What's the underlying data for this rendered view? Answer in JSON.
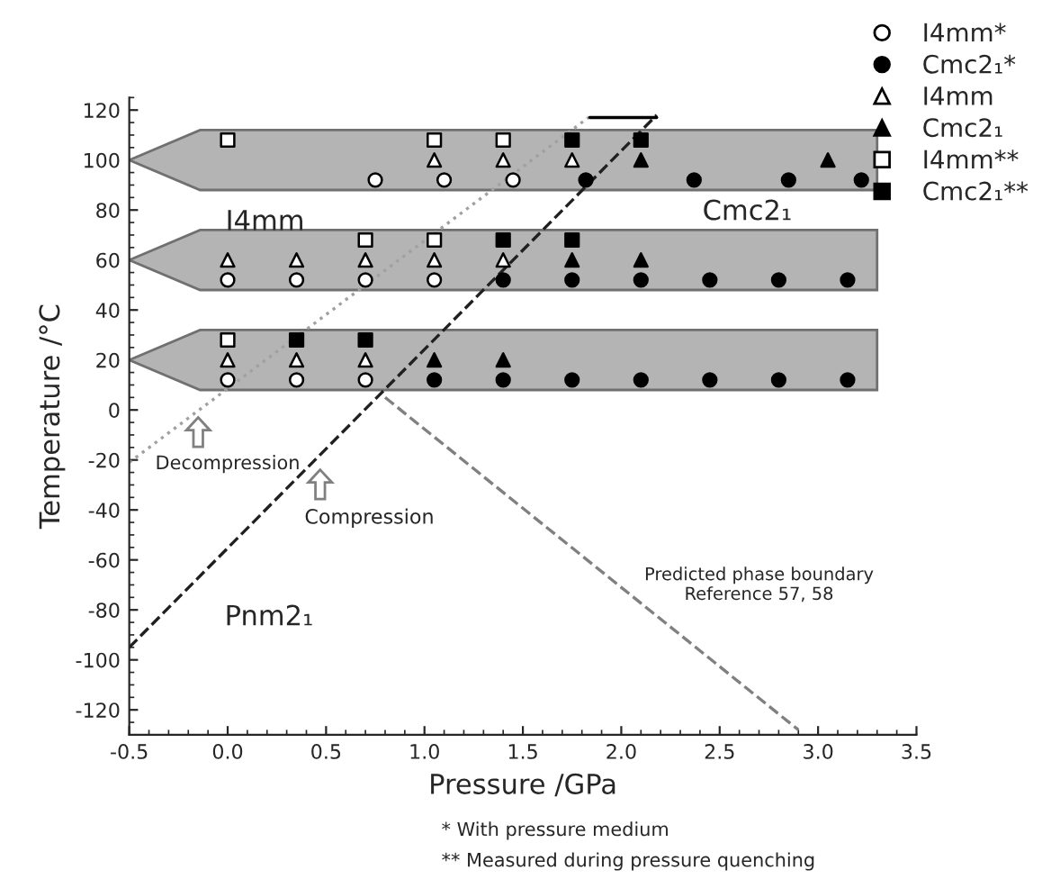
{
  "chart_data": {
    "type": "scatter",
    "xlabel": "Pressure /GPa",
    "ylabel": "Temperature /°C",
    "xlim": [
      -0.5,
      3.5
    ],
    "ylim": [
      -130,
      125
    ],
    "xticks": [
      {
        "value": -0.5,
        "label": "-0.5"
      },
      {
        "value": 0,
        "label": "0.0"
      },
      {
        "value": 0.5,
        "label": "0.5"
      },
      {
        "value": 1,
        "label": "1.0"
      },
      {
        "value": 1.5,
        "label": "1.5"
      },
      {
        "value": 2,
        "label": "2.0"
      },
      {
        "value": 2.5,
        "label": "2.5"
      },
      {
        "value": 3,
        "label": "3.0"
      },
      {
        "value": 3.5,
        "label": "3.5"
      }
    ],
    "yticks": [
      -120,
      -100,
      -80,
      -60,
      -40,
      -20,
      0,
      20,
      40,
      60,
      80,
      100,
      120
    ],
    "grid": false,
    "legend": "top right",
    "bands": [
      {
        "axis": "y",
        "from": 88,
        "to": 112,
        "label": null,
        "color": "#b4b4b4"
      },
      {
        "axis": "y",
        "from": 48,
        "to": 72,
        "label": null,
        "color": "#b4b4b4"
      },
      {
        "axis": "y",
        "from": 8,
        "to": 32,
        "label": null,
        "color": "#b4b4b4"
      }
    ],
    "series": [
      {
        "type": "line",
        "x": [
          -0.5,
          1.85
        ],
        "values": [
          -21,
          118
        ],
        "color": "#a0a0a0",
        "line_style": "dotted",
        "marker": "none"
      },
      {
        "type": "line",
        "x": [
          -0.5,
          2.18
        ],
        "values": [
          -95,
          118
        ],
        "color": "#202020",
        "line_style": "dashed",
        "marker": "none"
      },
      {
        "type": "line",
        "x": [
          0.8,
          2.9
        ],
        "values": [
          5,
          -128
        ],
        "color": "#808080",
        "line_style": "dashed",
        "marker": "none"
      },
      {
        "type": "line",
        "x": [
          1.84,
          2.18
        ],
        "values": [
          117,
          117
        ],
        "color": "#000000",
        "line_style": "solid",
        "marker": "none"
      },
      {
        "name": "I4mm*",
        "marker": "circle",
        "color": "#ffffff",
        "x": [
          0,
          0.35,
          0.7,
          0,
          0.35,
          0.7,
          1.05,
          0.75,
          1.1,
          1.45
        ],
        "values": [
          12,
          12,
          12,
          52,
          52,
          52,
          52,
          92,
          92,
          92
        ]
      },
      {
        "name": "Cmc2₁*",
        "marker": "circle",
        "color": "#000000",
        "x": [
          1.05,
          1.4,
          1.75,
          2.1,
          2.45,
          2.8,
          3.15,
          1.4,
          1.75,
          2.1,
          2.45,
          2.8,
          3.15,
          1.82,
          2.37,
          2.85,
          3.22
        ],
        "values": [
          12,
          12,
          12,
          12,
          12,
          12,
          12,
          52,
          52,
          52,
          52,
          52,
          52,
          92,
          92,
          92,
          92
        ]
      },
      {
        "name": "I4mm",
        "marker": "triangle",
        "color": "#ffffff",
        "x": [
          0,
          0.35,
          0.7,
          0,
          0.35,
          0.7,
          1.05,
          1.4,
          1.05,
          1.4,
          1.75
        ],
        "values": [
          20,
          20,
          20,
          60,
          60,
          60,
          60,
          60,
          100,
          100,
          100
        ]
      },
      {
        "name": "Cmc2₁",
        "marker": "triangle",
        "color": "#000000",
        "x": [
          1.05,
          1.4,
          1.75,
          2.1,
          2.1,
          3.05
        ],
        "values": [
          20,
          20,
          60,
          60,
          100,
          100
        ]
      },
      {
        "name": "I4mm**",
        "marker": "square",
        "color": "#ffffff",
        "x": [
          0,
          0.7,
          1.05,
          0,
          1.05,
          1.4
        ],
        "values": [
          28,
          68,
          68,
          108,
          108,
          108
        ]
      },
      {
        "name": "Cmc2₁**",
        "marker": "square",
        "color": "#000000",
        "x": [
          0.35,
          0.7,
          1.4,
          1.75,
          1.75,
          2.1
        ],
        "values": [
          28,
          28,
          68,
          68,
          108,
          108
        ]
      }
    ],
    "annotations": [
      "Decompression",
      "Compression",
      "I4mm",
      "Cmc2₁",
      "Pnm2₁",
      "Predicted phase boundary\nReference 57, 58",
      "* With pressure medium",
      "** Measured during pressure quenching"
    ]
  }
}
